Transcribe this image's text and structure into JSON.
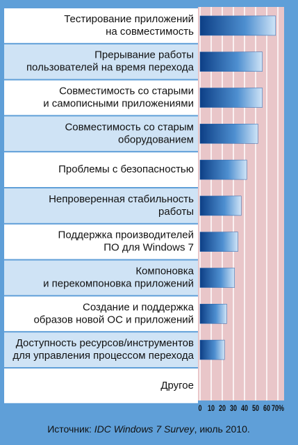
{
  "chart_data": {
    "type": "bar",
    "orientation": "horizontal",
    "categories": [
      [
        "Тестирование приложений",
        "на совместимость"
      ],
      [
        "Прерывание работы",
        "пользователей на время перехода"
      ],
      [
        "Совместимость со старыми",
        "и самописными приложениями"
      ],
      [
        "Совместимость со старым",
        "оборудованием"
      ],
      [
        "Проблемы с безопасностью"
      ],
      [
        "Непроверенная стабильность",
        "работы"
      ],
      [
        "Поддержка производителей",
        "ПО для Windows 7"
      ],
      [
        "Компоновка",
        "и перекомпоновка приложений"
      ],
      [
        "Создание и поддержка",
        "образов новой ОС и приложений"
      ],
      [
        "Доступность ресурсов/инструментов",
        "для управления процессом перехода"
      ],
      [
        "Другое"
      ]
    ],
    "values": [
      68,
      56,
      56,
      52,
      42,
      37,
      34,
      31,
      24,
      22,
      0
    ],
    "color": "#1f5fa8",
    "xlim": [
      0,
      70
    ],
    "xticks": [
      0,
      10,
      20,
      30,
      40,
      50,
      60,
      {
        "value": 70,
        "label": "70%"
      }
    ],
    "grid": true,
    "source": [
      "Источник: ",
      "IDC Windows 7 Survey",
      ", июль 2010."
    ]
  }
}
